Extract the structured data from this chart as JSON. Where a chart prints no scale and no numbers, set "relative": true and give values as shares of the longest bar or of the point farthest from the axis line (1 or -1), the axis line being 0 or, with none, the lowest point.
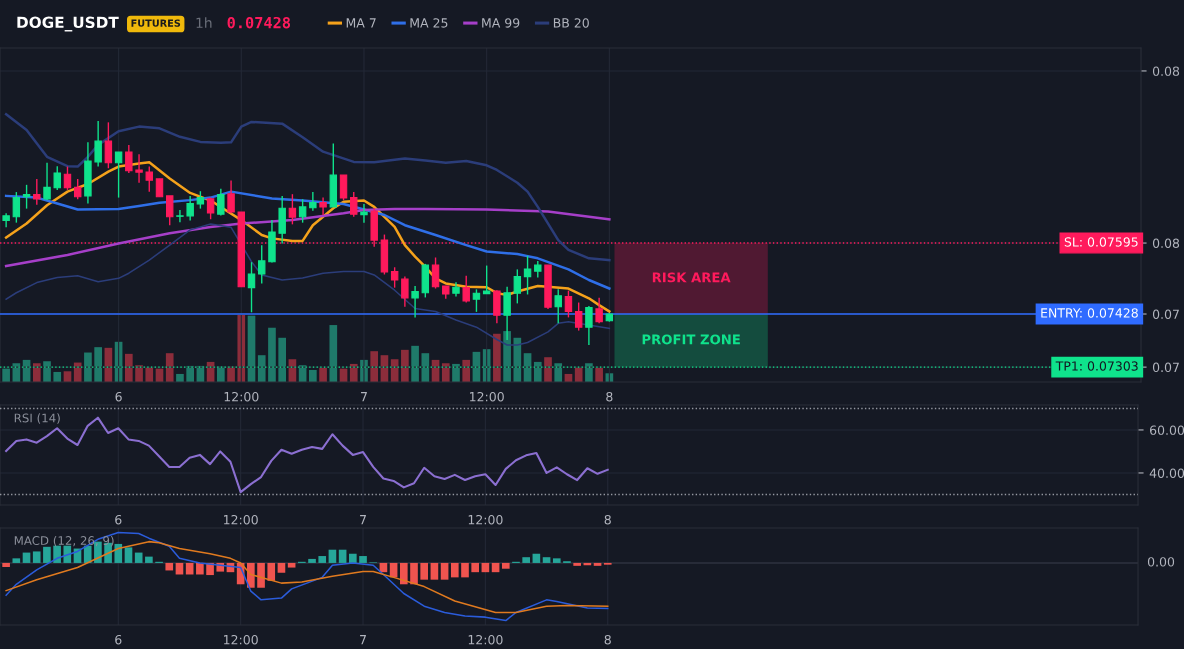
{
  "chart_data": [
    {
      "type": "candlestick",
      "title": "DOGE_USDT",
      "annotations": [
        "FUTURES",
        "1h",
        "0.07428",
        "RISK AREA",
        "PROFIT ZONE"
      ],
      "categories": [
        null,
        null,
        null,
        null,
        null,
        null,
        null,
        null,
        null,
        null,
        null,
        "6",
        null,
        null,
        null,
        null,
        null,
        null,
        null,
        null,
        null,
        null,
        null,
        "12:00",
        null,
        null,
        null,
        null,
        null,
        null,
        null,
        null,
        null,
        null,
        null,
        "7",
        null,
        null,
        null,
        null,
        null,
        null,
        null,
        null,
        null,
        null,
        null,
        "12:00",
        null,
        null,
        null,
        null,
        null,
        null,
        null,
        null,
        null,
        null,
        null,
        "8"
      ],
      "ohlc": [
        [
          0.07648,
          0.07665,
          0.07632,
          0.07659
        ],
        [
          0.07657,
          0.07715,
          0.07643,
          0.07702
        ],
        [
          0.07704,
          0.07732,
          0.07676,
          0.07709
        ],
        [
          0.07709,
          0.07746,
          0.07685,
          0.07699
        ],
        [
          0.07699,
          0.07784,
          0.07696,
          0.07726
        ],
        [
          0.07725,
          0.07776,
          0.0772,
          0.0776
        ],
        [
          0.07757,
          0.07775,
          0.0772,
          0.07725
        ],
        [
          0.07726,
          0.07746,
          0.07698,
          0.07704
        ],
        [
          0.07706,
          0.07832,
          0.07688,
          0.07788
        ],
        [
          0.07786,
          0.07882,
          0.07775,
          0.07835
        ],
        [
          0.07835,
          0.07879,
          0.07771,
          0.07784
        ],
        [
          0.07784,
          0.07809,
          0.07702,
          0.07809
        ],
        [
          0.07809,
          0.07826,
          0.0776,
          0.07765
        ],
        [
          0.07767,
          0.07804,
          0.07737,
          0.07762
        ],
        [
          0.07762,
          0.07775,
          0.07716,
          0.07743
        ],
        [
          0.07746,
          0.07746,
          0.07704,
          0.07704
        ],
        [
          0.07706,
          0.07706,
          0.07637,
          0.07657
        ],
        [
          0.07658,
          0.07673,
          0.07644,
          0.07659
        ],
        [
          0.07659,
          0.07706,
          0.07648,
          0.07688
        ],
        [
          0.07687,
          0.07717,
          0.07676,
          0.07702
        ],
        [
          0.07699,
          0.07702,
          0.07651,
          0.07666
        ],
        [
          0.07663,
          0.07723,
          0.0766,
          0.07709
        ],
        [
          0.07711,
          0.07742,
          0.07665,
          0.07668
        ],
        [
          0.07668,
          0.07668,
          0.07492,
          0.07492
        ],
        [
          0.0749,
          0.0755,
          0.07432,
          0.07522
        ],
        [
          0.07522,
          0.0759,
          0.075,
          0.07553
        ],
        [
          0.07551,
          0.07649,
          0.07549,
          0.07621
        ],
        [
          0.07618,
          0.07706,
          0.07594,
          0.07677
        ],
        [
          0.07677,
          0.0771,
          0.07639,
          0.07656
        ],
        [
          0.07657,
          0.07698,
          0.07643,
          0.0768
        ],
        [
          0.07678,
          0.07715,
          0.07671,
          0.0769
        ],
        [
          0.0769,
          0.07702,
          0.07661,
          0.0768
        ],
        [
          0.0768,
          0.07829,
          0.0768,
          0.07755
        ],
        [
          0.07755,
          0.07755,
          0.07696,
          0.07701
        ],
        [
          0.07702,
          0.07715,
          0.07657,
          0.07663
        ],
        [
          0.07662,
          0.07687,
          0.07643,
          0.07668
        ],
        [
          0.0767,
          0.07677,
          0.07586,
          0.07602
        ],
        [
          0.07602,
          0.07615,
          0.07521,
          0.07527
        ],
        [
          0.07528,
          0.07538,
          0.0749,
          0.07508
        ],
        [
          0.0751,
          0.07516,
          0.07445,
          0.07466
        ],
        [
          0.07466,
          0.07494,
          0.0742,
          0.07481
        ],
        [
          0.07478,
          0.07546,
          0.07467,
          0.07543
        ],
        [
          0.07543,
          0.07561,
          0.07488,
          0.07492
        ],
        [
          0.07494,
          0.07494,
          0.07464,
          0.07475
        ],
        [
          0.07477,
          0.07503,
          0.07469,
          0.07491
        ],
        [
          0.0749,
          0.07518,
          0.07455,
          0.07459
        ],
        [
          0.07463,
          0.07486,
          0.07433,
          0.07477
        ],
        [
          0.07476,
          0.07542,
          0.07476,
          0.07482
        ],
        [
          0.07482,
          0.07484,
          0.07406,
          0.07425
        ],
        [
          0.07425,
          0.07492,
          0.07367,
          0.07478
        ],
        [
          0.07477,
          0.07533,
          0.07453,
          0.07516
        ],
        [
          0.07516,
          0.07565,
          0.07474,
          0.07534
        ],
        [
          0.07529,
          0.07553,
          0.07514,
          0.07543
        ],
        [
          0.07543,
          0.07543,
          0.0744,
          0.07444
        ],
        [
          0.07445,
          0.07486,
          0.07406,
          0.07471
        ],
        [
          0.07469,
          0.07483,
          0.0742,
          0.07434
        ],
        [
          0.07434,
          0.07455,
          0.07389,
          0.07397
        ],
        [
          0.07397,
          0.07447,
          0.07355,
          0.07443
        ],
        [
          0.0744,
          0.07466,
          0.07406,
          0.0741
        ],
        [
          0.07412,
          0.0743,
          0.0741,
          0.07428
        ]
      ],
      "colors": [
        "#0fe38c",
        "#0fe38c",
        "#0fe38c",
        "#ff1a5c",
        "#0fe38c",
        "#0fe38c",
        "#ff1a5c",
        "#ff1a5c",
        "#0fe38c",
        "#0fe38c",
        "#ff1a5c",
        "#0fe38c",
        "#ff1a5c",
        "#ff1a5c",
        "#ff1a5c",
        "#ff1a5c",
        "#ff1a5c",
        "#0fe38c",
        "#0fe38c",
        "#0fe38c",
        "#ff1a5c",
        "#0fe38c",
        "#ff1a5c",
        "#ff1a5c",
        "#0fe38c",
        "#0fe38c",
        "#0fe38c",
        "#0fe38c",
        "#ff1a5c",
        "#0fe38c",
        "#0fe38c",
        "#ff1a5c",
        "#0fe38c",
        "#ff1a5c",
        "#ff1a5c",
        "#0fe38c",
        "#ff1a5c",
        "#ff1a5c",
        "#ff1a5c",
        "#ff1a5c",
        "#0fe38c",
        "#0fe38c",
        "#ff1a5c",
        "#ff1a5c",
        "#0fe38c",
        "#ff1a5c",
        "#0fe38c",
        "#0fe38c",
        "#ff1a5c",
        "#0fe38c",
        "#0fe38c",
        "#0fe38c",
        "#0fe38c",
        "#ff1a5c",
        "#0fe38c",
        "#ff1a5c",
        "#ff1a5c",
        "#0fe38c",
        "#ff1a5c",
        "#0fe38c"
      ],
      "series": [
        {
          "type": "line",
          "name": "MA 7",
          "color": "#f5a21b",
          "values": [
            0.07608,
            null,
            0.07641,
            null,
            0.07684,
            null,
            0.07716,
            null,
            0.07734,
            null,
            0.07763,
            0.07775,
            null,
            0.07782,
            0.07785,
            null,
            0.07747,
            null,
            0.07713,
            null,
            0.07695,
            null,
            null,
            0.07649,
            null,
            0.07614,
            0.07606,
            null,
            0.076,
            0.076,
            0.07637,
            null,
            0.07677,
            0.07692,
            null,
            0.07695,
            0.0768,
            null,
            0.07633,
            0.0759,
            0.07563,
            0.07539,
            0.07512,
            0.075,
            null,
            0.07492,
            null,
            0.07491,
            0.07477,
            0.07473,
            0.07481,
            null,
            0.07494,
            0.07492,
            null,
            0.07488,
            null,
            0.07465,
            0.07449,
            0.07434
          ]
        },
        {
          "type": "line",
          "name": "MA 25",
          "color": "#2f6fe8",
          "values": [
            0.07706,
            null,
            null,
            0.07702,
            null,
            0.07688,
            null,
            0.07674,
            null,
            null,
            null,
            0.07675,
            null,
            0.07682,
            null,
            0.0769,
            null,
            null,
            0.07696,
            null,
            0.07702,
            null,
            0.07716,
            null,
            null,
            null,
            0.077,
            null,
            null,
            0.07695,
            null,
            null,
            null,
            0.07687,
            null,
            0.07674,
            null,
            0.07661,
            null,
            0.07637,
            null,
            null,
            0.07614,
            null,
            null,
            0.0759,
            null,
            0.07575,
            null,
            null,
            0.07569,
            null,
            0.07559,
            null,
            null,
            0.07533,
            null,
            0.07508,
            null,
            0.07488
          ]
        },
        {
          "type": "line",
          "name": "MA 99",
          "color": "#a63fc9",
          "values": [
            0.07541,
            null,
            null,
            null,
            null,
            null,
            0.07567,
            null,
            null,
            null,
            null,
            0.07594,
            null,
            null,
            null,
            null,
            0.07618,
            null,
            null,
            null,
            0.07633,
            null,
            null,
            0.07641,
            null,
            null,
            null,
            null,
            0.07649,
            null,
            null,
            null,
            null,
            0.07665,
            null,
            0.07673,
            null,
            null,
            0.07675,
            null,
            null,
            0.07675,
            null,
            null,
            null,
            null,
            null,
            0.07674,
            null,
            null,
            null,
            null,
            null,
            0.07669,
            null,
            null,
            null,
            null,
            null,
            0.07651
          ]
        },
        {
          "type": "line",
          "name": "BB 20",
          "color": "#2b3d7a",
          "values": [
            0.07898,
            null,
            0.07861,
            null,
            0.07798,
            null,
            0.07776,
            0.07775,
            0.07798,
            0.07826,
            null,
            0.07858,
            null,
            0.07869,
            null,
            0.07865,
            null,
            0.07845,
            null,
            0.07833,
            null,
            0.07831,
            0.07832,
            0.07869,
            0.0788,
            null,
            null,
            0.07876,
            null,
            0.07844,
            null,
            0.0781,
            null,
            null,
            0.07786,
            null,
            0.07785,
            null,
            null,
            0.07794,
            null,
            0.07789,
            null,
            0.07784,
            null,
            0.07788,
            null,
            0.07778,
            0.07767,
            null,
            0.07737,
            0.07716,
            0.0768,
            null,
            0.07602,
            0.07579,
            null,
            0.07559,
            null,
            0.07555
          ]
        },
        {
          "type": "line",
          "color": "#2b3d7a",
          "values": [
            0.07463,
            0.07478,
            null,
            0.07502,
            null,
            0.07514,
            null,
            0.07518,
            null,
            0.07504,
            null,
            0.07512,
            0.07524,
            null,
            0.07555,
            null,
            0.0759,
            null,
            0.07626,
            null,
            0.0764,
            null,
            0.07632,
            null,
            0.07551,
            0.0752,
            null,
            0.07508,
            null,
            0.07513,
            null,
            0.07524,
            null,
            0.07528,
            null,
            0.07528,
            0.0752,
            null,
            0.07484,
            null,
            0.07441,
            null,
            0.07434,
            null,
            0.07414,
            null,
            0.07397,
            null,
            0.07368,
            0.07355,
            0.07355,
            0.07361,
            null,
            0.07386,
            0.07406,
            0.0741,
            null,
            null,
            null,
            0.07394
          ]
        }
      ],
      "ref_lines": [
        {
          "axis": "y",
          "value": 0.07595,
          "label": "SL: 0.07595",
          "color": "#ff1a5c",
          "line_style": "dotted"
        },
        {
          "axis": "y",
          "value": 0.07428,
          "label": "ENTRY: 0.07428",
          "color": "#2f6bff",
          "line_style": "solid"
        },
        {
          "axis": "y",
          "value": 0.07303,
          "label": "TP1: 0.07303",
          "color": "#0fe38c",
          "line_style": "dotted"
        }
      ],
      "ylim": [
        0.07268,
        0.08054
      ],
      "yticks": [
        0.08,
        {
          "value": 0.07595,
          "label": "0.08"
        },
        {
          "value": 0.07428,
          "label": "0.07"
        },
        {
          "value": 0.07303,
          "label": "0.07"
        }
      ],
      "grid": true,
      "legend": "top"
    },
    {
      "type": "bar",
      "relative": true,
      "categories": [
        null,
        null,
        null,
        null,
        null,
        null,
        null,
        null,
        null,
        null,
        null,
        null,
        null,
        null,
        null,
        null,
        null,
        null,
        null,
        null,
        null,
        null,
        null,
        null,
        null,
        null,
        null,
        null,
        null,
        null,
        null,
        null,
        null,
        null,
        null,
        null,
        null,
        null,
        null,
        null,
        null,
        null,
        null,
        null,
        null,
        null,
        null,
        null,
        null,
        null,
        null,
        null,
        null,
        null,
        null,
        null,
        null,
        null,
        null,
        null
      ],
      "values": [
        0.2,
        0.28,
        0.33,
        0.28,
        0.31,
        0.15,
        0.16,
        0.29,
        0.44,
        0.52,
        0.51,
        0.6,
        0.42,
        0.25,
        0.22,
        0.2,
        0.43,
        0.12,
        0.24,
        0.24,
        0.3,
        0.23,
        0.23,
        1,
        0.99,
        0.4,
        0.81,
        0.66,
        0.34,
        0.25,
        0.18,
        0.21,
        0.85,
        0.2,
        0.27,
        0.33,
        0.46,
        0.4,
        0.34,
        0.48,
        0.54,
        0.43,
        0.33,
        0.28,
        0.27,
        0.33,
        0.45,
        0.49,
        0.72,
        0.76,
        0.66,
        0.43,
        0.3,
        0.37,
        0.28,
        0.12,
        0.22,
        0.28,
        0.21,
        0.13
      ],
      "colors": [
        "#1f7a6a",
        "#1f7a6a",
        "#1f7a6a",
        "#8c2d3b",
        "#1f7a6a",
        "#1f7a6a",
        "#8c2d3b",
        "#8c2d3b",
        "#1f7a6a",
        "#1f7a6a",
        "#8c2d3b",
        "#1f7a6a",
        "#8c2d3b",
        "#8c2d3b",
        "#8c2d3b",
        "#8c2d3b",
        "#8c2d3b",
        "#1f7a6a",
        "#1f7a6a",
        "#1f7a6a",
        "#8c2d3b",
        "#1f7a6a",
        "#8c2d3b",
        "#8c2d3b",
        "#1f7a6a",
        "#1f7a6a",
        "#1f7a6a",
        "#1f7a6a",
        "#8c2d3b",
        "#1f7a6a",
        "#1f7a6a",
        "#8c2d3b",
        "#1f7a6a",
        "#8c2d3b",
        "#8c2d3b",
        "#1f7a6a",
        "#8c2d3b",
        "#8c2d3b",
        "#8c2d3b",
        "#8c2d3b",
        "#1f7a6a",
        "#1f7a6a",
        "#8c2d3b",
        "#8c2d3b",
        "#1f7a6a",
        "#8c2d3b",
        "#1f7a6a",
        "#1f7a6a",
        "#8c2d3b",
        "#1f7a6a",
        "#1f7a6a",
        "#1f7a6a",
        "#1f7a6a",
        "#8c2d3b",
        "#1f7a6a",
        "#8c2d3b",
        "#8c2d3b",
        "#1f7a6a",
        "#8c2d3b",
        "#1f7a6a"
      ]
    },
    {
      "type": "line",
      "title": "RSI (14)",
      "color": "#8b6fd1",
      "categories": [
        null,
        null,
        null,
        null,
        null,
        null,
        null,
        null,
        null,
        null,
        null,
        "6",
        null,
        null,
        null,
        null,
        null,
        null,
        null,
        null,
        null,
        null,
        null,
        "12:00",
        null,
        null,
        null,
        null,
        null,
        null,
        null,
        null,
        null,
        null,
        null,
        "7",
        null,
        null,
        null,
        null,
        null,
        null,
        null,
        null,
        null,
        null,
        null,
        "12:00",
        null,
        null,
        null,
        null,
        null,
        null,
        null,
        null,
        null,
        null,
        null,
        "8"
      ],
      "values": [
        50.2,
        54.9,
        55.6,
        54.1,
        57.1,
        60.8,
        56.0,
        53.0,
        61.9,
        65.7,
        58.6,
        60.8,
        55.6,
        54.9,
        52.7,
        47.8,
        42.8,
        42.8,
        47.1,
        48.4,
        44.1,
        50.0,
        45.2,
        31.1,
        34.8,
        38.1,
        45.6,
        50.8,
        48.9,
        50.8,
        52.1,
        51.2,
        58.0,
        52.7,
        48.4,
        49.7,
        42.8,
        37.4,
        36.3,
        33.3,
        35.2,
        42.4,
        38.5,
        37.2,
        39.1,
        36.7,
        38.5,
        39.4,
        34.4,
        41.9,
        45.9,
        48.2,
        49.3,
        40.0,
        42.6,
        39.4,
        36.7,
        42.2,
        39.6,
        41.5
      ],
      "ref_lines": [
        {
          "axis": "y",
          "value": 70,
          "color": "#9598a1",
          "line_style": "dotted"
        },
        {
          "axis": "y",
          "value": 30,
          "color": "#9598a1",
          "line_style": "dotted"
        }
      ],
      "ylim": [
        25.1,
        71.6
      ],
      "yticks": [
        {
          "value": 60,
          "label": "60.00"
        },
        {
          "value": 40,
          "label": "40.00"
        }
      ],
      "grid": true
    },
    {
      "type": "bar",
      "title": "MACD (12, 26, 9)",
      "relative": true,
      "categories": [
        null,
        null,
        null,
        null,
        null,
        null,
        null,
        null,
        null,
        null,
        null,
        "6",
        null,
        null,
        null,
        null,
        null,
        null,
        null,
        null,
        null,
        null,
        null,
        "12:00",
        null,
        null,
        null,
        null,
        null,
        null,
        null,
        null,
        null,
        null,
        null,
        "7",
        null,
        null,
        null,
        null,
        null,
        null,
        null,
        null,
        null,
        null,
        null,
        "12:00",
        null,
        null,
        null,
        null,
        null,
        null,
        null,
        null,
        null,
        null,
        null,
        "8"
      ],
      "values": [
        -0.07,
        0.08,
        0.18,
        0.2,
        0.28,
        0.3,
        0.3,
        0.25,
        0.3,
        0.37,
        0.35,
        0.33,
        0.27,
        0.18,
        0.11,
        0.02,
        -0.13,
        -0.2,
        -0.2,
        -0.2,
        -0.21,
        -0.15,
        -0.16,
        -0.37,
        -0.43,
        -0.43,
        -0.31,
        -0.17,
        -0.08,
        0.02,
        0.07,
        0.12,
        0.23,
        0.23,
        0.16,
        0.12,
        0.01,
        -0.16,
        -0.25,
        -0.37,
        -0.37,
        -0.29,
        -0.29,
        -0.29,
        -0.25,
        -0.25,
        -0.16,
        -0.16,
        -0.16,
        -0.1,
        0.02,
        0.1,
        0.16,
        0.1,
        0.08,
        0.03,
        -0.05,
        -0.04,
        -0.05,
        -0.03
      ],
      "colors": [
        "#f0544f",
        "#26a69a",
        "#26a69a",
        "#26a69a",
        "#26a69a",
        "#26a69a",
        "#26a69a",
        "#26a69a",
        "#26a69a",
        "#26a69a",
        "#26a69a",
        "#26a69a",
        "#26a69a",
        "#26a69a",
        "#26a69a",
        "#26a69a",
        "#f0544f",
        "#f0544f",
        "#f0544f",
        "#f0544f",
        "#f0544f",
        "#f0544f",
        "#f0544f",
        "#f0544f",
        "#f0544f",
        "#f0544f",
        "#f0544f",
        "#f0544f",
        "#f0544f",
        "#26a69a",
        "#26a69a",
        "#26a69a",
        "#26a69a",
        "#26a69a",
        "#26a69a",
        "#26a69a",
        "#26a69a",
        "#f0544f",
        "#f0544f",
        "#f0544f",
        "#f0544f",
        "#f0544f",
        "#f0544f",
        "#f0544f",
        "#f0544f",
        "#f0544f",
        "#f0544f",
        "#f0544f",
        "#f0544f",
        "#f0544f",
        "#26a69a",
        "#26a69a",
        "#26a69a",
        "#26a69a",
        "#26a69a",
        "#26a69a",
        "#f0544f",
        "#f0544f",
        "#f0544f",
        "#f0544f"
      ],
      "series": [
        {
          "type": "line",
          "color": "#2b5cdb",
          "values": [
            -0.56,
            -0.37,
            null,
            -0.12,
            null,
            0.08,
            null,
            0.2,
            null,
            0.41,
            null,
            0.53,
            null,
            0.51,
            0.43,
            null,
            0.29,
            0.08,
            null,
            0,
            null,
            -0.04,
            null,
            -0.08,
            -0.49,
            -0.64,
            null,
            -0.61,
            -0.45,
            null,
            null,
            -0.25,
            -0.04,
            null,
            0,
            null,
            -0.04,
            -0.2,
            null,
            -0.53,
            null,
            -0.75,
            null,
            -0.86,
            null,
            -0.92,
            null,
            -0.94,
            null,
            -1,
            -0.86,
            null,
            null,
            -0.64,
            -0.67,
            null,
            null,
            -0.78,
            null,
            -0.79
          ]
        },
        {
          "type": "line",
          "color": "#e07a1f",
          "values": [
            -0.48,
            null,
            null,
            -0.29,
            null,
            null,
            null,
            -0.08,
            null,
            null,
            null,
            0.25,
            null,
            null,
            0.37,
            0.35,
            null,
            0.25,
            null,
            null,
            0.16,
            null,
            0.08,
            0,
            -0.2,
            null,
            null,
            -0.35,
            null,
            -0.33,
            null,
            null,
            -0.23,
            null,
            null,
            -0.15,
            -0.15,
            null,
            -0.25,
            null,
            null,
            -0.41,
            null,
            null,
            -0.66,
            null,
            null,
            null,
            -0.86,
            null,
            -0.86,
            null,
            null,
            -0.75,
            null,
            -0.74,
            null,
            null,
            null,
            -0.75
          ]
        }
      ],
      "annotations": [
        "0.00"
      ],
      "grid": true
    }
  ]
}
